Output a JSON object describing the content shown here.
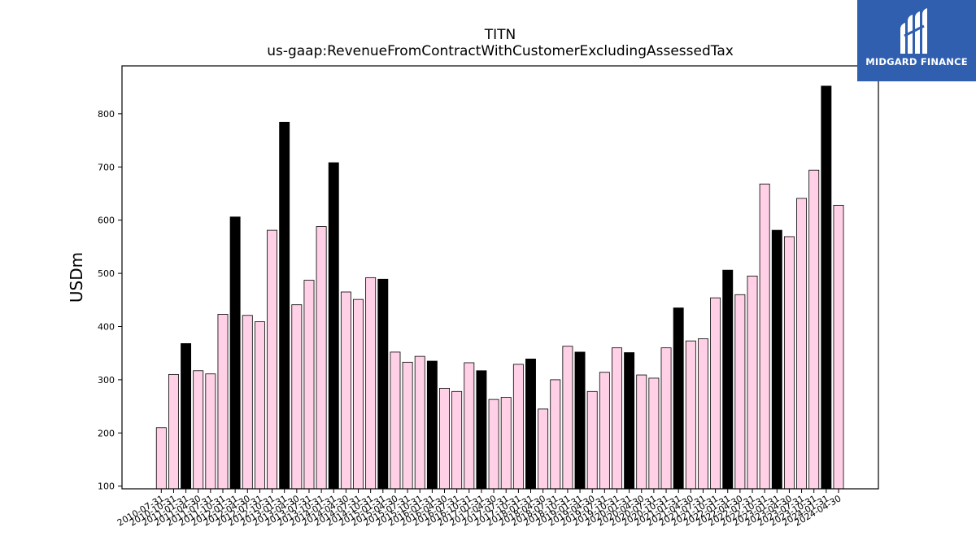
{
  "brand": {
    "name": "MIDGARD FINANCE",
    "bg_color": "#2f5fae",
    "icon": "midgard-finance-logo-icon"
  },
  "chart_data": {
    "type": "bar",
    "title": "TITN",
    "subtitle": "us-gaap:RevenueFromContractWithCustomerExcludingAssessedTax",
    "xlabel": "",
    "ylabel": "USDm",
    "ylim": [
      95,
      890
    ],
    "yticks": [
      100,
      200,
      300,
      400,
      500,
      600,
      700,
      800
    ],
    "grid": false,
    "colors": {
      "quarter": "#ffd0e6",
      "annual": "#000000",
      "edge": "#000000"
    },
    "categories": [
      "2010-07-31",
      "2010-10-31",
      "2011-01-31",
      "2011-04-30",
      "2011-07-31",
      "2011-10-31",
      "2012-01-31",
      "2012-04-30",
      "2012-07-31",
      "2012-10-31",
      "2013-01-31",
      "2013-04-30",
      "2013-07-31",
      "2013-10-31",
      "2014-01-31",
      "2014-04-30",
      "2014-07-31",
      "2014-10-31",
      "2015-01-31",
      "2015-04-30",
      "2015-07-31",
      "2015-10-31",
      "2016-01-31",
      "2016-04-30",
      "2016-07-31",
      "2016-10-31",
      "2017-01-31",
      "2017-04-30",
      "2017-07-31",
      "2017-10-31",
      "2018-01-31",
      "2018-04-30",
      "2018-07-31",
      "2018-10-31",
      "2019-01-31",
      "2019-04-30",
      "2019-07-31",
      "2019-10-31",
      "2020-01-31",
      "2020-04-30",
      "2020-07-31",
      "2020-10-31",
      "2021-01-31",
      "2021-04-30",
      "2021-07-31",
      "2021-10-31",
      "2022-01-31",
      "2022-04-30",
      "2022-07-31",
      "2022-10-31",
      "2023-01-31",
      "2023-04-30",
      "2023-07-31",
      "2023-10-31",
      "2024-01-31",
      "2024-04-30"
    ],
    "values": [
      210,
      310,
      368,
      317,
      311,
      423,
      606,
      421,
      409,
      581,
      784,
      441,
      487,
      588,
      708,
      465,
      451,
      492,
      489,
      352,
      333,
      344,
      335,
      284,
      278,
      332,
      317,
      263,
      267,
      329,
      339,
      245,
      300,
      363,
      352,
      278,
      314,
      360,
      351,
      309,
      303,
      360,
      435,
      373,
      377,
      454,
      506,
      460,
      495,
      668,
      581,
      569,
      641,
      694,
      852,
      628
    ],
    "annual": [
      false,
      false,
      true,
      false,
      false,
      false,
      true,
      false,
      false,
      false,
      true,
      false,
      false,
      false,
      true,
      false,
      false,
      false,
      true,
      false,
      false,
      false,
      true,
      false,
      false,
      false,
      true,
      false,
      false,
      false,
      true,
      false,
      false,
      false,
      true,
      false,
      false,
      false,
      true,
      false,
      false,
      false,
      true,
      false,
      false,
      false,
      true,
      false,
      false,
      false,
      true,
      false,
      false,
      false,
      true,
      false
    ]
  }
}
